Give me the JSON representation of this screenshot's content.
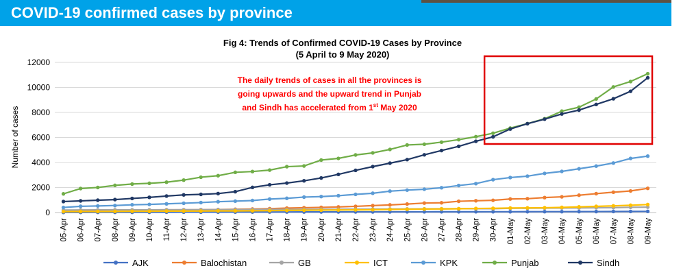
{
  "banner": {
    "title": "COVID-19 confirmed cases by province"
  },
  "chart_data": {
    "type": "line",
    "title": "Fig 4: Trends of Confirmed COVID-19 Cases by Province",
    "subtitle": "(5 April to 9 May 2020)",
    "ylabel": "Number of cases",
    "xlabel": "",
    "ylim": [
      0,
      12000
    ],
    "yticks": [
      0,
      2000,
      4000,
      6000,
      8000,
      10000,
      12000
    ],
    "grid": "horizontal",
    "legend": "bottom",
    "annotation": "The daily trends of cases in all the provinces is going upwards and the upward trend in Punjab and Sindh has accelerated from 1st May 2020",
    "annotation_lines": [
      "The daily trends of cases in all the provinces is",
      "going upwards and the upward trend in Punjab",
      "and Sindh has accelerated from 1"
    ],
    "annotation_sup": "st",
    "annotation_tail": " May 2020",
    "highlight_range": [
      "30-Apr",
      "09-May"
    ],
    "categories": [
      "05-Apr",
      "06-Apr",
      "07-Apr",
      "08-Apr",
      "09-Apr",
      "10-Apr",
      "11-Apr",
      "12-Apr",
      "13-Apr",
      "14-Apr",
      "15-Apr",
      "16-Apr",
      "17-Apr",
      "18-Apr",
      "19-Apr",
      "20-Apr",
      "21-Apr",
      "22-Apr",
      "23-Apr",
      "24-Apr",
      "25-Apr",
      "26-Apr",
      "27-Apr",
      "28-Apr",
      "29-Apr",
      "30-Apr",
      "01-May",
      "02-May",
      "03-May",
      "04-May",
      "05-May",
      "06-May",
      "07-May",
      "08-May",
      "09-May"
    ],
    "series": [
      {
        "name": "AJK",
        "color": "#4472c4",
        "values": [
          12,
          13,
          16,
          18,
          18,
          20,
          26,
          30,
          32,
          36,
          39,
          41,
          43,
          44,
          46,
          48,
          50,
          51,
          52,
          54,
          56,
          59,
          61,
          62,
          63,
          64,
          66,
          67,
          71,
          73,
          76,
          80,
          84,
          88,
          93
        ]
      },
      {
        "name": "Balochistan",
        "color": "#ed7d31",
        "values": [
          175,
          191,
          200,
          212,
          212,
          217,
          220,
          222,
          229,
          240,
          262,
          281,
          313,
          355,
          387,
          415,
          449,
          497,
          555,
          609,
          678,
          758,
          781,
          902,
          943,
          978,
          1083,
          1107,
          1197,
          1256,
          1385,
          1510,
          1625,
          1725,
          1935
        ]
      },
      {
        "name": "GB",
        "color": "#a5a5a5",
        "values": [
          200,
          206,
          211,
          213,
          214,
          215,
          219,
          224,
          227,
          237,
          238,
          243,
          248,
          251,
          257,
          260,
          262,
          270,
          277,
          283,
          291,
          299,
          302,
          307,
          308,
          310,
          339,
          347,
          354,
          364,
          366,
          380,
          390,
          420,
          430
        ]
      },
      {
        "name": "ICT",
        "color": "#ffc000",
        "values": [
          75,
          82,
          84,
          90,
          102,
          102,
          116,
          116,
          119,
          131,
          131,
          140,
          154,
          171,
          185,
          194,
          204,
          214,
          225,
          248,
          264,
          277,
          288,
          302,
          326,
          338,
          362,
          371,
          385,
          413,
          452,
          495,
          535,
          582,
          641
        ]
      },
      {
        "name": "KPK",
        "color": "#5b9bd5",
        "values": [
          405,
          500,
          527,
          560,
          620,
          650,
          697,
          744,
          798,
          865,
          912,
          960,
          1077,
          1137,
          1235,
          1276,
          1345,
          1453,
          1541,
          1708,
          1793,
          1864,
          1984,
          2160,
          2313,
          2627,
          2799,
          2907,
          3129,
          3288,
          3499,
          3712,
          3956,
          4323,
          4509
        ]
      },
      {
        "name": "Punjab",
        "color": "#70ad47",
        "values": [
          1493,
          1918,
          2004,
          2171,
          2279,
          2336,
          2425,
          2594,
          2826,
          2945,
          3217,
          3276,
          3391,
          3668,
          3721,
          4195,
          4328,
          4603,
          4768,
          5045,
          5401,
          5460,
          5627,
          5827,
          6061,
          6340,
          6747,
          7106,
          7494,
          8103,
          8420,
          9077,
          10039,
          10471,
          11093
        ]
      },
      {
        "name": "Sindh",
        "color": "#203864",
        "values": [
          881,
          932,
          986,
          1036,
          1128,
          1214,
          1318,
          1411,
          1452,
          1518,
          1668,
          2008,
          2217,
          2355,
          2537,
          2764,
          3053,
          3373,
          3671,
          3945,
          4232,
          4615,
          4956,
          5291,
          5695,
          6053,
          6675,
          7102,
          7465,
          7882,
          8189,
          8640,
          9093,
          9691,
          10771
        ]
      }
    ]
  }
}
